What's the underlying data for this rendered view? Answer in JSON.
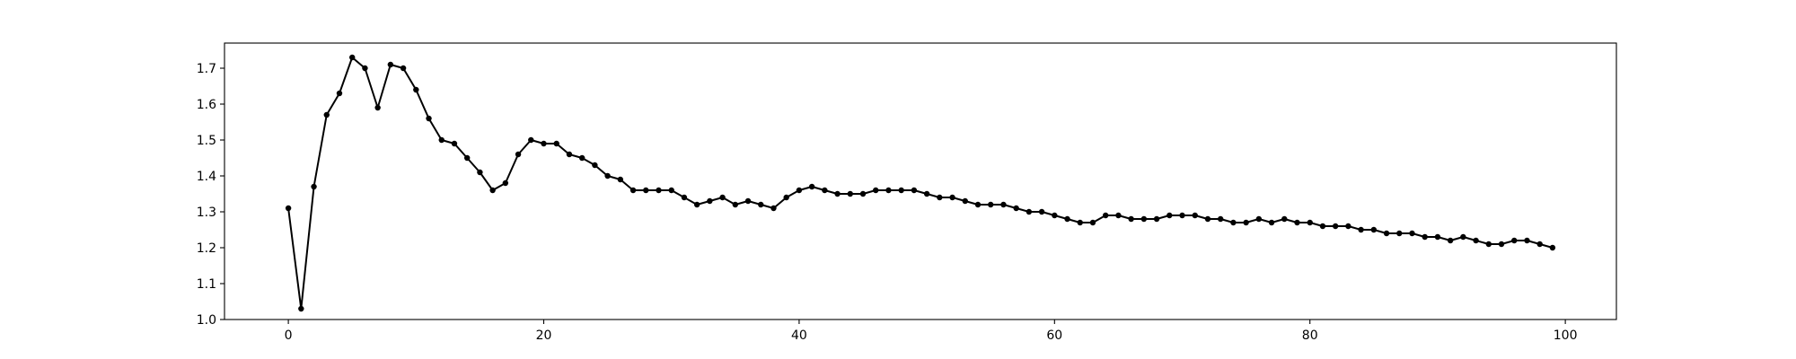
{
  "chart_data": {
    "type": "line",
    "title": "",
    "xlabel": "",
    "ylabel": "",
    "xlim": [
      -5,
      104
    ],
    "ylim": [
      1.0,
      1.77
    ],
    "x_ticks": [
      0,
      20,
      40,
      60,
      80,
      100
    ],
    "y_ticks": [
      1.0,
      1.1,
      1.2,
      1.3,
      1.4,
      1.5,
      1.6,
      1.7
    ],
    "grid": false,
    "legend": "none",
    "series": [
      {
        "color": "#000000",
        "marker": "circle",
        "x": [
          0,
          1,
          2,
          3,
          4,
          5,
          6,
          7,
          8,
          9,
          10,
          11,
          12,
          13,
          14,
          15,
          16,
          17,
          18,
          19,
          20,
          21,
          22,
          23,
          24,
          25,
          26,
          27,
          28,
          29,
          30,
          31,
          32,
          33,
          34,
          35,
          36,
          37,
          38,
          39,
          40,
          41,
          42,
          43,
          44,
          45,
          46,
          47,
          48,
          49,
          50,
          51,
          52,
          53,
          54,
          55,
          56,
          57,
          58,
          59,
          60,
          61,
          62,
          63,
          64,
          65,
          66,
          67,
          68,
          69,
          70,
          71,
          72,
          73,
          74,
          75,
          76,
          77,
          78,
          79,
          80,
          81,
          82,
          83,
          84,
          85,
          86,
          87,
          88,
          89,
          90,
          91,
          92,
          93,
          94,
          95,
          96,
          97,
          98,
          99
        ],
        "values": [
          1.31,
          1.03,
          1.37,
          1.57,
          1.63,
          1.73,
          1.7,
          1.59,
          1.71,
          1.7,
          1.64,
          1.56,
          1.5,
          1.49,
          1.45,
          1.41,
          1.36,
          1.38,
          1.46,
          1.5,
          1.49,
          1.49,
          1.46,
          1.45,
          1.43,
          1.4,
          1.39,
          1.36,
          1.36,
          1.36,
          1.36,
          1.34,
          1.32,
          1.33,
          1.34,
          1.32,
          1.33,
          1.32,
          1.31,
          1.34,
          1.36,
          1.37,
          1.36,
          1.35,
          1.35,
          1.35,
          1.36,
          1.36,
          1.36,
          1.36,
          1.35,
          1.34,
          1.34,
          1.33,
          1.32,
          1.32,
          1.32,
          1.31,
          1.3,
          1.3,
          1.29,
          1.28,
          1.27,
          1.27,
          1.29,
          1.29,
          1.28,
          1.28,
          1.28,
          1.29,
          1.29,
          1.29,
          1.28,
          1.28,
          1.27,
          1.27,
          1.28,
          1.27,
          1.28,
          1.27,
          1.27,
          1.26,
          1.26,
          1.26,
          1.25,
          1.25,
          1.24,
          1.24,
          1.24,
          1.23,
          1.23,
          1.22,
          1.23,
          1.22,
          1.21,
          1.21,
          1.22,
          1.22,
          1.21,
          1.2
        ]
      }
    ]
  }
}
